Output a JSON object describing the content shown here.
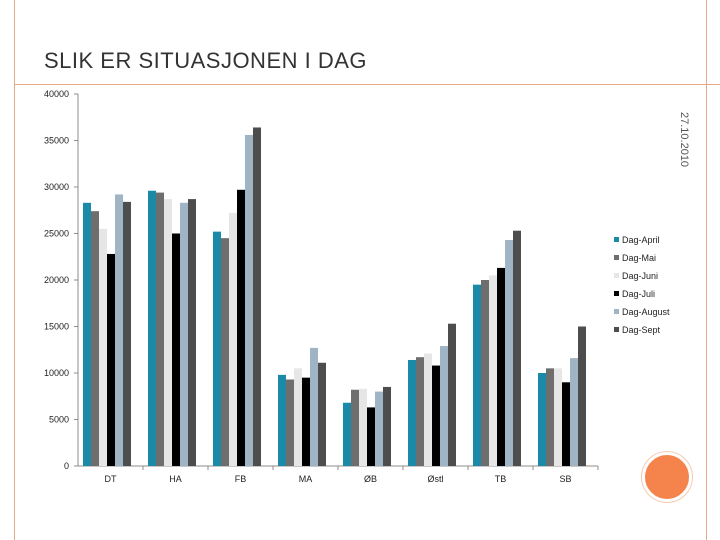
{
  "slide": {
    "title": "SLIK ER SITUASJONEN I DAG",
    "date": "27.10.2010"
  },
  "colors": {
    "frame": "#e8a98a",
    "accent_circle": "#f5844c"
  },
  "chart_data": {
    "type": "bar",
    "title": "",
    "xlabel": "",
    "ylabel": "",
    "ylim": [
      0,
      40000
    ],
    "yticks": [
      0,
      5000,
      10000,
      15000,
      20000,
      25000,
      30000,
      35000,
      40000
    ],
    "grid": false,
    "legend_position": "right",
    "categories": [
      "DT",
      "HA",
      "FB",
      "MA",
      "ØB",
      "Østl",
      "TB",
      "SB"
    ],
    "series": [
      {
        "name": "Dag-April",
        "color": "#1a8aa8",
        "values": [
          28300,
          29600,
          25200,
          9800,
          6800,
          11400,
          19500,
          10000
        ]
      },
      {
        "name": "Dag-Mai",
        "color": "#6e6e6e",
        "values": [
          27400,
          29400,
          24500,
          9300,
          8200,
          11700,
          20000,
          10500
        ]
      },
      {
        "name": "Dag-Juni",
        "color": "#e6e6e6",
        "values": [
          25500,
          28700,
          27200,
          10500,
          8300,
          12100,
          20500,
          10500
        ]
      },
      {
        "name": "Dag-Juli",
        "color": "#000000",
        "values": [
          22800,
          25000,
          29700,
          9500,
          6300,
          10800,
          21300,
          9000
        ]
      },
      {
        "name": "Dag-August",
        "color": "#9fb4c4",
        "values": [
          29200,
          28300,
          35600,
          12700,
          8000,
          12900,
          24300,
          11600
        ]
      },
      {
        "name": "Dag-Sept",
        "color": "#4d4d4d",
        "values": [
          28400,
          28700,
          36400,
          11100,
          8500,
          15300,
          25300,
          15000
        ]
      }
    ]
  }
}
